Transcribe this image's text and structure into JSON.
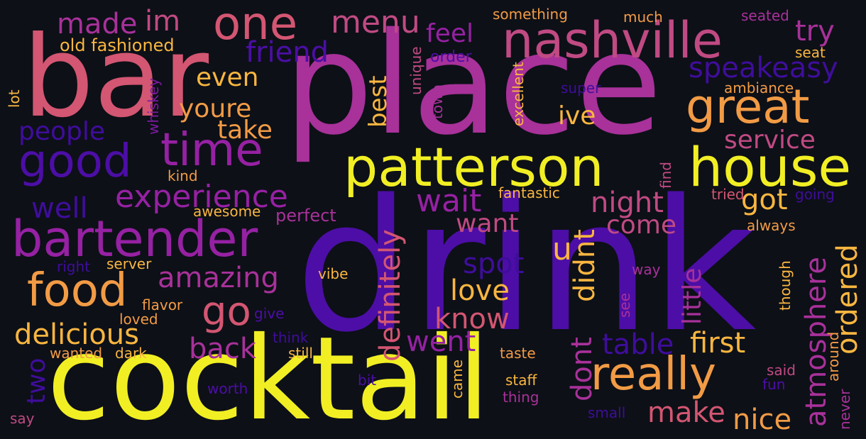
{
  "colors": {
    "background": "#0d1017",
    "deep_indigo": "#3f0d9c",
    "indigo": "#4c0ea6",
    "purple": "#7d1aa2",
    "violet": "#9621a3",
    "magenta": "#a8319a",
    "pink": "#c04a83",
    "rose": "#d35672",
    "salmon": "#e07a60",
    "orange": "#f29b45",
    "amber": "#f9b640",
    "yellow": "#f1ef24"
  },
  "words": {
    "place": "place",
    "drink": "drink",
    "cocktail": "cocktail",
    "bar": "bar",
    "patterson": "patterson",
    "house": "house",
    "nashville": "nashville",
    "great": "great",
    "bartender": "bartender",
    "good": "good",
    "time": "time",
    "food": "food",
    "one": "one",
    "really": "really",
    "experience": "experience",
    "menu": "menu",
    "go": "go",
    "atmosphere": "atmosphere",
    "definitely": "definitely",
    "delicious": "delicious",
    "amazing": "amazing",
    "wait": "wait",
    "night": "night",
    "made": "made",
    "im": "im",
    "friend": "friend",
    "speakeasy": "speakeasy",
    "service": "service",
    "feel": "feel",
    "try": "try",
    "even": "even",
    "youre": "youre",
    "take": "take",
    "people": "people",
    "well": "well",
    "best": "best",
    "ive": "ive",
    "got": "got",
    "come": "come",
    "want": "want",
    "u": "u",
    "spot": "spot",
    "love": "love",
    "know": "know",
    "little": "little",
    "ordered": "ordered",
    "didnt": "didnt",
    "dont": "dont",
    "back": "back",
    "went": "went",
    "table": "table",
    "first": "first",
    "make": "make",
    "nice": "nice",
    "two": "two",
    "old_fashioned": "old fashioned",
    "something": "something",
    "much": "much",
    "seated": "seated",
    "order": "order",
    "unique": "unique",
    "seat": "seat",
    "excellent": "excellent",
    "super": "super",
    "ambiance": "ambiance",
    "lot": "lot",
    "whiskey": "whiskey",
    "town": "town",
    "kind": "kind",
    "fantastic": "fantastic",
    "find": "find",
    "tried": "tried",
    "going": "going",
    "awesome": "awesome",
    "perfect": "perfect",
    "always": "always",
    "right": "right",
    "server": "server",
    "vibe": "vibe",
    "way": "way",
    "though": "though",
    "flavor": "flavor",
    "give": "give",
    "see": "see",
    "loved": "loved",
    "think": "think",
    "wanted": "wanted",
    "dark": "dark",
    "still": "still",
    "taste": "taste",
    "around": "around",
    "said": "said",
    "fun": "fun",
    "came": "came",
    "bit": "bit",
    "staff": "staff",
    "thing": "thing",
    "worth": "worth",
    "small": "small",
    "never": "never",
    "say": "say"
  }
}
